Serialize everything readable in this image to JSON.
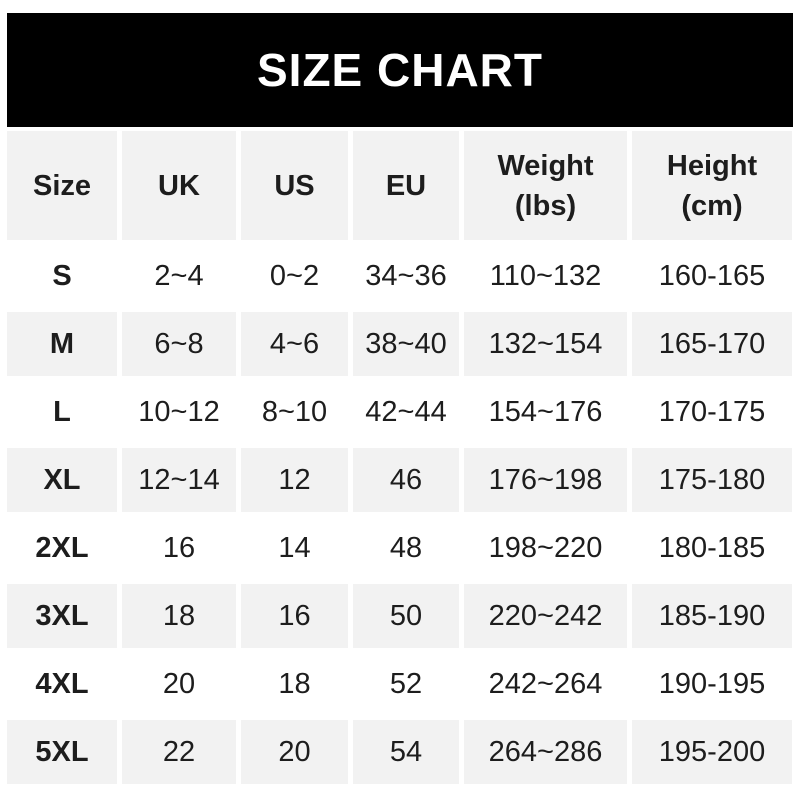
{
  "title": "SIZE CHART",
  "colors": {
    "banner_bg": "#000000",
    "banner_text": "#ffffff",
    "alt_row_bg": "#f2f2f2",
    "body_bg": "#ffffff",
    "text": "#1d1d1d"
  },
  "chart_data": {
    "type": "table",
    "title": "SIZE CHART",
    "columns": [
      "Size",
      "UK",
      "US",
      "EU",
      "Weight (lbs)",
      "Height (cm)"
    ],
    "header_lines": [
      [
        "Size"
      ],
      [
        "UK"
      ],
      [
        "US"
      ],
      [
        "EU"
      ],
      [
        "Weight",
        "(lbs)"
      ],
      [
        "Height",
        "(cm)"
      ]
    ],
    "rows": [
      [
        "S",
        "2~4",
        "0~2",
        "34~36",
        "110~132",
        "160-165"
      ],
      [
        "M",
        "6~8",
        "4~6",
        "38~40",
        "132~154",
        "165-170"
      ],
      [
        "L",
        "10~12",
        "8~10",
        "42~44",
        "154~176",
        "170-175"
      ],
      [
        "XL",
        "12~14",
        "12",
        "46",
        "176~198",
        "175-180"
      ],
      [
        "2XL",
        "16",
        "14",
        "48",
        "198~220",
        "180-185"
      ],
      [
        "3XL",
        "18",
        "16",
        "50",
        "220~242",
        "185-190"
      ],
      [
        "4XL",
        "20",
        "18",
        "52",
        "242~264",
        "190-195"
      ],
      [
        "5XL",
        "22",
        "20",
        "54",
        "264~286",
        "195-200"
      ]
    ],
    "layout": {
      "row_striping": "alternating white and light gray, starting white after gray header",
      "legend": "none",
      "grid": "white gaps between cells"
    }
  }
}
